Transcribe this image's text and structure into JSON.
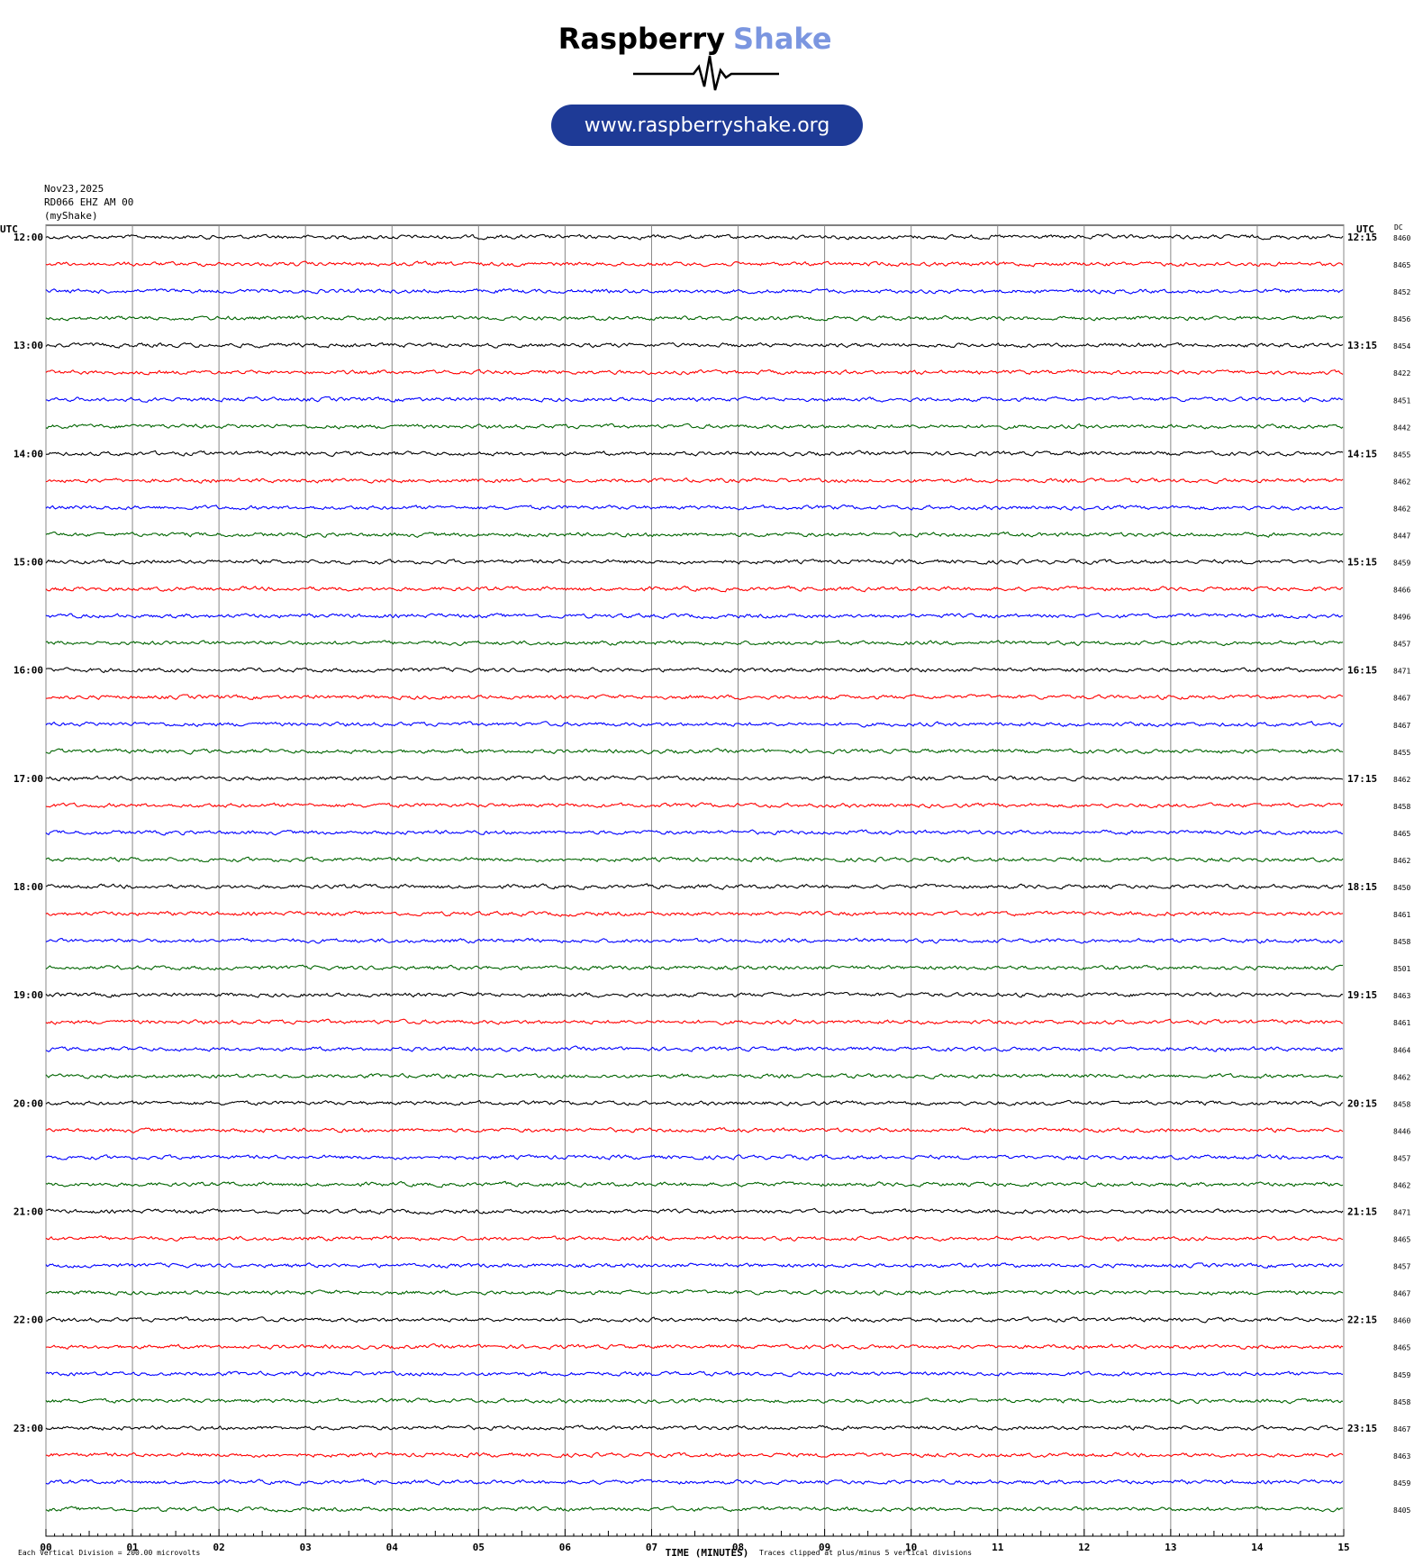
{
  "header": {
    "brand": "Raspberry",
    "brand_accent": "Shake",
    "url": "www.raspberryshake.org"
  },
  "chart_data": {
    "type": "helicorder",
    "info": [
      "Nov23,2025",
      "RD066 EHZ AM 00",
      "(myShake)"
    ],
    "left_axis_title": "UTC",
    "right_axis_title": "UTC",
    "dc_title": "DC",
    "xlabel": "TIME (MINUTES)",
    "note_left": "Each Vertical Division = 200.00 microvolts",
    "note_right": "Traces clipped at plus/minus 5 vertical divisions",
    "xlim": [
      0,
      15
    ],
    "xticks": [
      {
        "value": 0,
        "label": "00"
      },
      {
        "value": 1,
        "label": "01"
      },
      {
        "value": 2,
        "label": "02"
      },
      {
        "value": 3,
        "label": "03"
      },
      {
        "value": 4,
        "label": "04"
      },
      {
        "value": 5,
        "label": "05"
      },
      {
        "value": 6,
        "label": "06"
      },
      {
        "value": 7,
        "label": "07"
      },
      {
        "value": 8,
        "label": "08"
      },
      {
        "value": 9,
        "label": "09"
      },
      {
        "value": 10,
        "label": "10"
      },
      {
        "value": 11,
        "label": "11"
      },
      {
        "value": 12,
        "label": "12"
      },
      {
        "value": 13,
        "label": "13"
      },
      {
        "value": 14,
        "label": "14"
      },
      {
        "value": 15,
        "label": "15"
      }
    ],
    "left_labels": [
      "12:00",
      "13:00",
      "14:00",
      "15:00",
      "16:00",
      "17:00",
      "18:00",
      "19:00",
      "20:00",
      "21:00",
      "22:00",
      "23:00"
    ],
    "right_labels": [
      "12:15",
      "13:15",
      "14:15",
      "15:15",
      "16:15",
      "17:15",
      "18:15",
      "19:15",
      "20:15",
      "21:15",
      "22:15",
      "23:15"
    ],
    "colors": [
      "#000000",
      "#ff0000",
      "#0000ff",
      "#006400"
    ],
    "dc": [
      8460,
      8465,
      8452,
      8456,
      8454,
      8422,
      8451,
      8442,
      8455,
      8462,
      8462,
      8447,
      8459,
      8466,
      8496,
      8457,
      8471,
      8467,
      8467,
      8455,
      8462,
      8458,
      8465,
      8462,
      8450,
      8461,
      8458,
      8501,
      8463,
      8461,
      8464,
      8462,
      8458,
      8446,
      8457,
      8462,
      8471,
      8465,
      8457,
      8467,
      8460,
      8465,
      8459,
      8458,
      8467,
      8463,
      8459,
      8405
    ]
  }
}
